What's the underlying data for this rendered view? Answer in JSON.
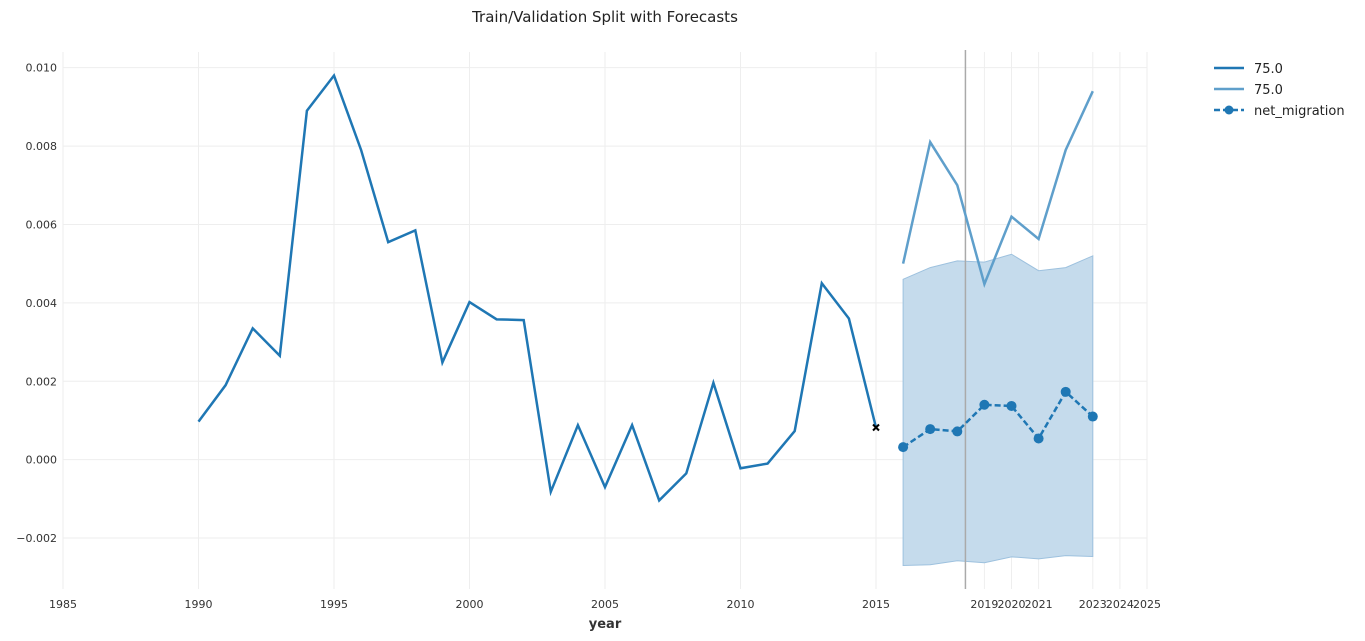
{
  "chart_data": {
    "type": "line",
    "title": "Train/Validation Split with Forecasts",
    "xlabel": "year",
    "ylabel": "",
    "xlim": [
      1985,
      2025
    ],
    "ylim": [
      -0.0033,
      0.0104
    ],
    "x_ticks": [
      "1985",
      "1990",
      "1995",
      "2000",
      "2005",
      "2010",
      "2015",
      "2019",
      "2020",
      "2021",
      "2023",
      "2024",
      "2025"
    ],
    "y_ticks": [
      "−0.002",
      "0.000",
      "0.002",
      "0.004",
      "0.006",
      "0.008",
      "0.010"
    ],
    "grid": true,
    "legend_position": "right-outside",
    "colors": {
      "primary": "#1f77b4",
      "secondary": "#5f9fcb",
      "band": "#c5dbec",
      "vline": "#aaaaaa"
    },
    "vertical_line_x": 2018.3,
    "train": {
      "x": [
        1990,
        1991,
        1992,
        1993,
        1994,
        1995,
        1996,
        1997,
        1998,
        1999,
        2000,
        2001,
        2002,
        2003,
        2004,
        2005,
        2006,
        2007,
        2008,
        2009,
        2010,
        2011,
        2012,
        2013,
        2014,
        2015
      ],
      "y": [
        0.00097,
        0.0019,
        0.00335,
        0.00265,
        0.0089,
        0.0098,
        0.0079,
        0.00555,
        0.00585,
        0.00248,
        0.00402,
        0.00358,
        0.00356,
        -0.00082,
        0.00088,
        -0.0007,
        0.00088,
        -0.00104,
        -0.00035,
        0.00196,
        -0.00022,
        -0.0001,
        0.00073,
        0.0045,
        0.0036,
        0.00082
      ]
    },
    "validation": {
      "x": [
        2016,
        2017,
        2018,
        2019,
        2020,
        2021,
        2022,
        2023
      ],
      "y": [
        0.005,
        0.0081,
        0.007,
        0.00448,
        0.0062,
        0.00563,
        0.0079,
        0.0094
      ]
    },
    "forecast": {
      "x": [
        2016,
        2017,
        2018,
        2019,
        2020,
        2021,
        2022,
        2023
      ],
      "y": [
        0.00032,
        0.00078,
        0.00072,
        0.0014,
        0.00137,
        0.00054,
        0.00173,
        0.0011
      ],
      "upper": [
        0.0046,
        0.0049,
        0.00507,
        0.00504,
        0.00524,
        0.00482,
        0.0049,
        0.0052
      ],
      "lower": [
        -0.0027,
        -0.00268,
        -0.00258,
        -0.00263,
        -0.00248,
        -0.00253,
        -0.00245,
        -0.00247
      ]
    },
    "legend": [
      "75.0",
      "75.0",
      "net_migration"
    ]
  }
}
